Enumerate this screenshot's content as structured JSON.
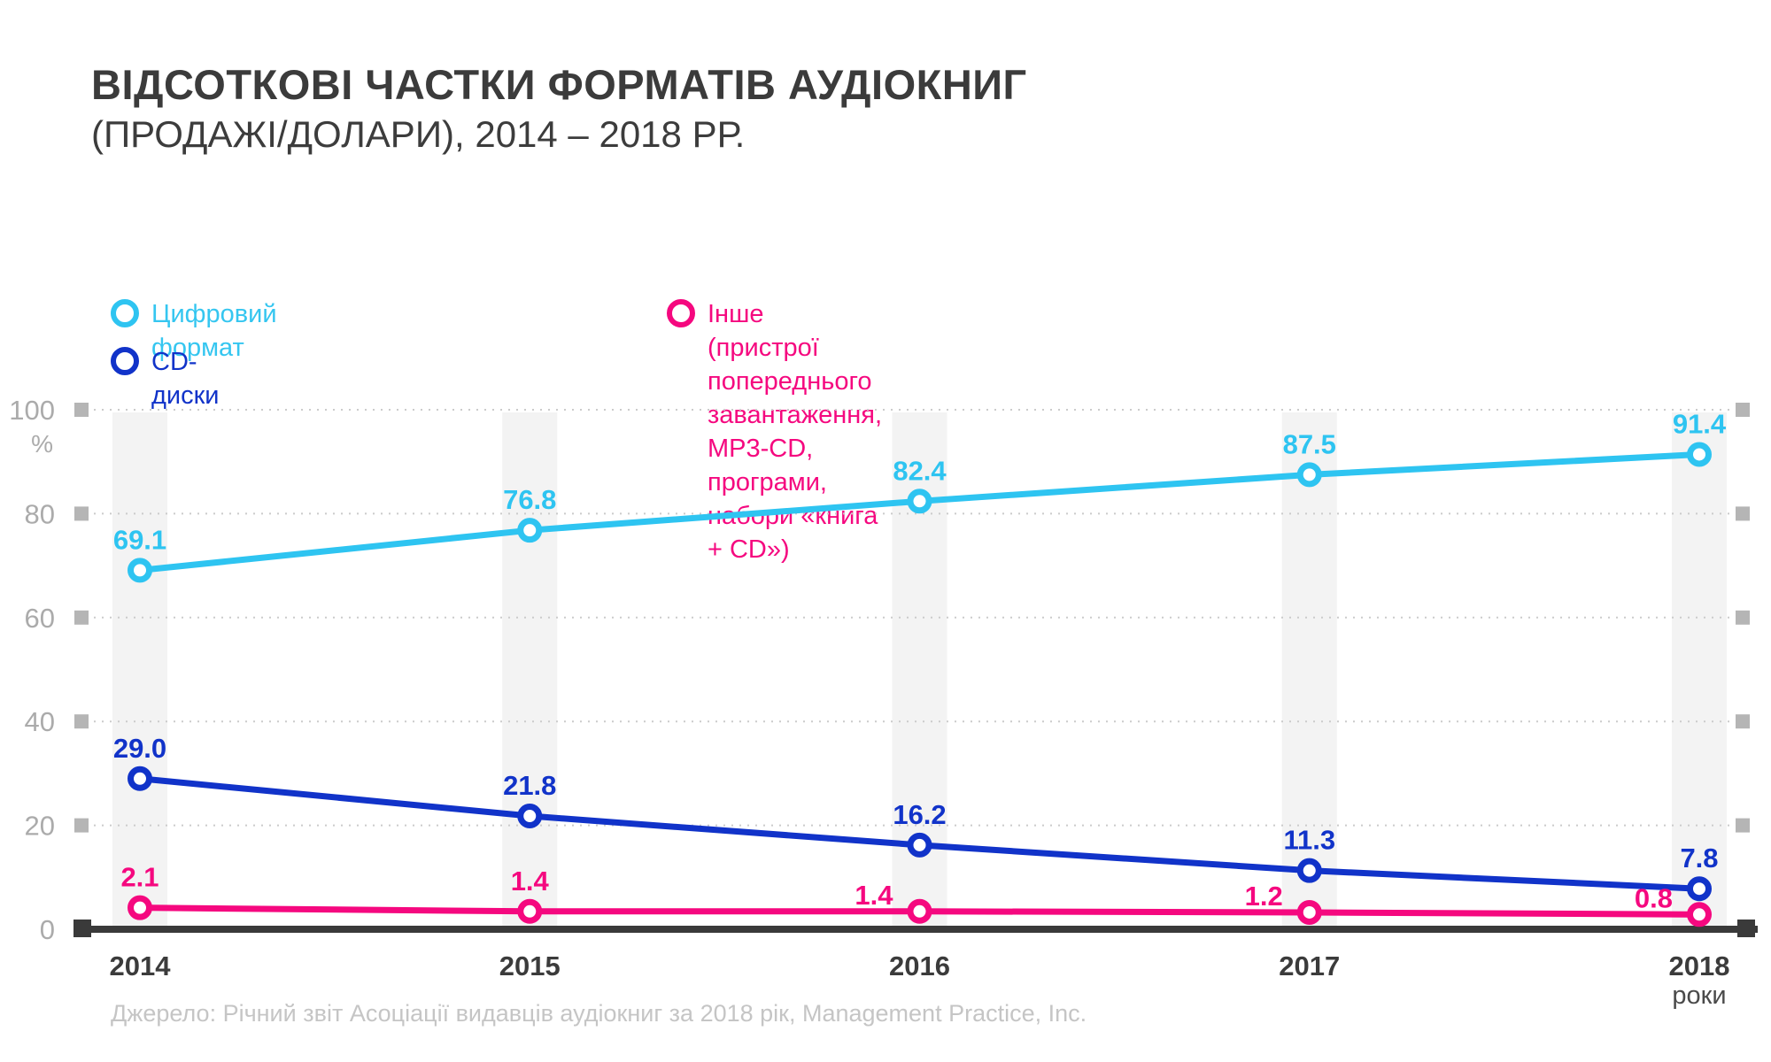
{
  "title": "ВІДСОТКОВІ ЧАСТКИ ФОРМАТІВ АУДІОКНИГ",
  "subtitle": "(ПРОДАЖІ/ДОЛАРИ), 2014 – 2018 РР.",
  "source": "Джерело: Річний звіт Асоціації видавців аудіокниг за 2018 рік, Management Practice, Inc.",
  "colors": {
    "digital": "#2ec4f1",
    "cd": "#1133c9",
    "other": "#f5087f",
    "axis_text": "#ababab",
    "tick_square": "#b5b5b5",
    "gridline": "#cbcbcb",
    "baseline": "#3a3a3a",
    "band": "#f3f3f3",
    "year_label": "#3b3b3b",
    "x_unit_label": "#4a4a4a"
  },
  "legend": [
    {
      "label": "Цифровий формат"
    },
    {
      "label": "CD-диски"
    },
    {
      "line1": "Інше (пристрої попереднього завантаження,",
      "line2": "MP3-CD, програми, набори «книга + CD»)"
    }
  ],
  "chart_data": {
    "type": "line",
    "x": [
      2014,
      2015,
      2016,
      2017,
      2018
    ],
    "xlabel": "роки",
    "ylabel": "%",
    "ylim": [
      0,
      100
    ],
    "yticks": [
      0,
      20,
      40,
      60,
      80,
      100
    ],
    "grid": "horizontal-dotted",
    "legend_position": "top",
    "year_band_highlight": true,
    "series": [
      {
        "name": "Цифровий формат",
        "color": "#2ec4f1",
        "values": [
          69.1,
          76.8,
          82.4,
          87.5,
          91.4
        ],
        "label_position": [
          "above",
          "above",
          "above",
          "above",
          "above"
        ]
      },
      {
        "name": "CD-диски",
        "color": "#1133c9",
        "values": [
          29.0,
          21.8,
          16.2,
          11.3,
          7.8
        ],
        "label_position": [
          "above",
          "above",
          "above",
          "above",
          "above"
        ]
      },
      {
        "name": "Інше (пристрої попереднього завантаження, MP3-CD, програми, набори «книга + CD»)",
        "color": "#f5087f",
        "values": [
          2.1,
          1.4,
          1.4,
          1.2,
          0.8
        ],
        "label_position": [
          "above",
          "above",
          "left",
          "left",
          "left"
        ]
      }
    ]
  }
}
